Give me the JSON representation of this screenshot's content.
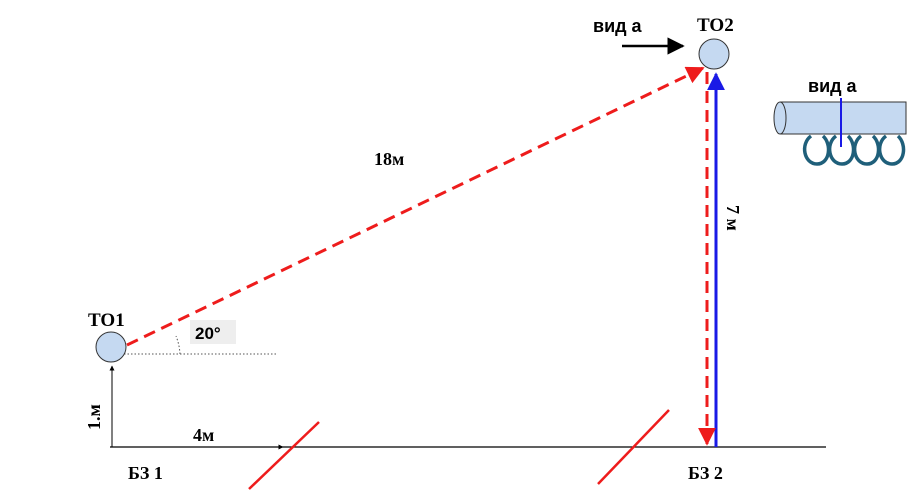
{
  "nodes": {
    "to1": {
      "label": "ТО1",
      "fill": "#c5d9f1"
    },
    "to2": {
      "label": "ТО2",
      "fill": "#c5d9f1"
    }
  },
  "measurements": {
    "diagonal": "18м",
    "vertical": "7 м",
    "height": "1.м",
    "horizontal": "4м",
    "angle": "20°"
  },
  "zones": {
    "bz1": "БЗ 1",
    "bz2": "БЗ 2"
  },
  "view": {
    "arrow_label": "вид а",
    "inset_label": "вид а",
    "inset_loop_count": 4
  },
  "colors": {
    "dashed_line": "#ee1c1c",
    "vertical_line": "#1a1ae6",
    "zone_marker": "#ee1c1c",
    "ground": "#000000",
    "pipe_fill": "#c5d9f1",
    "loop_stroke": "#1f5f7a",
    "angle_badge": "#eeeeee"
  }
}
